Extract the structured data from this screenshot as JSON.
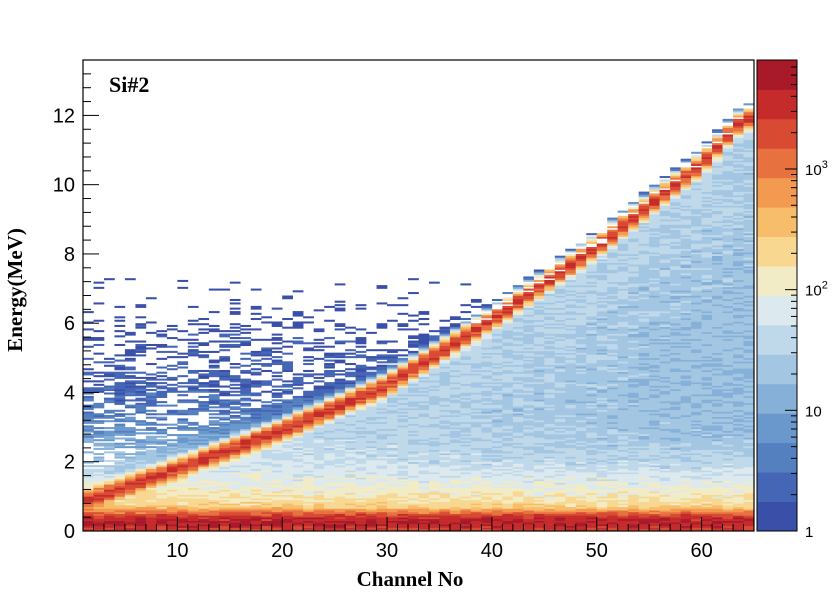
{
  "chart_data": {
    "type": "heatmap",
    "panel_label": "Si#2",
    "xlabel": "Channel No",
    "ylabel": "Energy(MeV)",
    "xlim": [
      1,
      65
    ],
    "ylim": [
      0,
      13.6
    ],
    "x_ticks": [
      10,
      20,
      30,
      40,
      50,
      60
    ],
    "y_ticks": [
      0,
      2,
      4,
      6,
      8,
      10,
      12
    ],
    "z_scale": "log",
    "z_range": [
      1,
      8000
    ],
    "z_ticks": [
      {
        "value": 1,
        "label": "1"
      },
      {
        "value": 10,
        "label": "10"
      },
      {
        "value": 100,
        "label": "10",
        "exp": "2"
      },
      {
        "value": 1000,
        "label": "10",
        "exp": "3"
      }
    ],
    "palette": [
      "#3a4fa8",
      "#4566b4",
      "#5580c0",
      "#6a98cc",
      "#86b0d8",
      "#a3c6e2",
      "#c0d9ea",
      "#dce9ee",
      "#f2ecc6",
      "#f8d890",
      "#f7bd6a",
      "#f19a50",
      "#e77240",
      "#d94a33",
      "#c52b2a",
      "#a8192a"
    ],
    "ridge": {
      "description_points": [
        {
          "channel": 1,
          "energy_MeV": 0.85
        },
        {
          "channel": 10,
          "energy_MeV": 1.8
        },
        {
          "channel": 20,
          "energy_MeV": 2.9
        },
        {
          "channel": 30,
          "energy_MeV": 4.2
        },
        {
          "channel": 40,
          "energy_MeV": 6.1
        },
        {
          "channel": 50,
          "energy_MeV": 8.2
        },
        {
          "channel": 60,
          "energy_MeV": 10.6
        },
        {
          "channel": 64,
          "energy_MeV": 11.9
        }
      ]
    },
    "grid": false
  }
}
